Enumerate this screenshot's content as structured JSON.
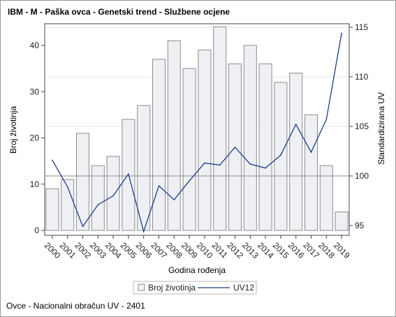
{
  "chart_data": {
    "type": "bar+line",
    "title": "IBM - M - Paška ovca - Genetski trend - Službene ocjene",
    "footnote": "Ovce - Nacionalni obračun UV - 2401",
    "xlabel": "Godina rođenja",
    "ylabel_left": "Broj životinja",
    "ylabel_right": "Standardizirana UV",
    "categories": [
      "2000",
      "2001",
      "2002",
      "2003",
      "2004",
      "2005",
      "2006",
      "2007",
      "2008",
      "2009",
      "2010",
      "2011",
      "2012",
      "2013",
      "2014",
      "2015",
      "2016",
      "2017",
      "2018",
      "2019"
    ],
    "left_axis": {
      "ylim": [
        0,
        45
      ],
      "ticks": [
        0,
        10,
        20,
        30,
        40
      ]
    },
    "right_axis": {
      "ylim": [
        94.2,
        115.3
      ],
      "ticks": [
        95,
        100,
        105,
        110,
        115
      ],
      "reference_line": 100
    },
    "grid": true,
    "legend_position": "bottom",
    "series": [
      {
        "name": "Broj životinja",
        "kind": "bar",
        "axis": "left",
        "color": "#eef0f4",
        "values": [
          9,
          11,
          21,
          14,
          16,
          24,
          27,
          37,
          41,
          35,
          39,
          44,
          36,
          40,
          36,
          32,
          34,
          25,
          14,
          4
        ]
      },
      {
        "name": "UV12",
        "kind": "line",
        "axis": "right",
        "color": "#1f3c88",
        "values": [
          101.6,
          98.9,
          94.9,
          97.1,
          98.0,
          100.2,
          94.4,
          99.0,
          97.6,
          99.5,
          101.3,
          101.1,
          102.9,
          101.2,
          100.8,
          102.1,
          105.2,
          102.4,
          105.7,
          114.4
        ]
      }
    ]
  },
  "colors": {
    "bar_fill": "#eef0f4",
    "bar_stroke": "#8c8c8c",
    "line": "#1f3c88",
    "grid": "#e6e6e6",
    "axis": "#444444"
  }
}
